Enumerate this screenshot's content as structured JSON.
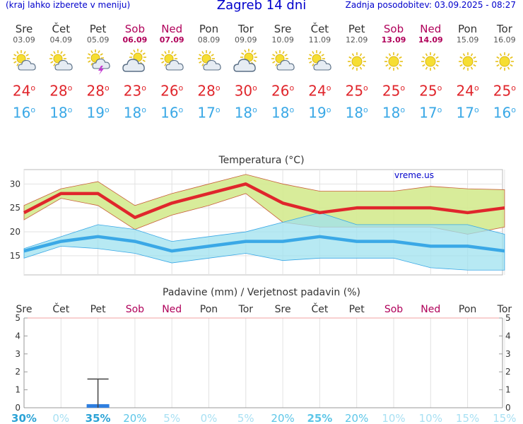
{
  "header": {
    "note": "(kraj lahko izberete v meniju)",
    "title": "Zagreb 14 dni",
    "updated": "Zadnja posodobitev: 03.09.2025 - 08:27"
  },
  "days": [
    {
      "name": "Sre",
      "date": "03.09",
      "weekend": false,
      "icon": "sun-cloud-icon",
      "max": "24",
      "min": "16"
    },
    {
      "name": "Čet",
      "date": "04.09",
      "weekend": false,
      "icon": "sun-cloud-icon",
      "max": "28",
      "min": "18"
    },
    {
      "name": "Pet",
      "date": "05.09",
      "weekend": false,
      "icon": "thunderstorm-icon",
      "max": "28",
      "min": "19"
    },
    {
      "name": "Sob",
      "date": "06.09",
      "weekend": true,
      "icon": "cloud-sun-icon",
      "max": "23",
      "min": "18"
    },
    {
      "name": "Ned",
      "date": "07.09",
      "weekend": true,
      "icon": "sun-cloud-icon",
      "max": "26",
      "min": "16"
    },
    {
      "name": "Pon",
      "date": "08.09",
      "weekend": false,
      "icon": "sun-cloud-icon",
      "max": "28",
      "min": "17"
    },
    {
      "name": "Tor",
      "date": "09.09",
      "weekend": false,
      "icon": "cloud-sun-icon",
      "max": "30",
      "min": "18"
    },
    {
      "name": "Sre",
      "date": "10.09",
      "weekend": false,
      "icon": "sun-cloud-icon",
      "max": "26",
      "min": "18"
    },
    {
      "name": "Čet",
      "date": "11.09",
      "weekend": false,
      "icon": "sun-cloud-icon",
      "max": "24",
      "min": "19"
    },
    {
      "name": "Pet",
      "date": "12.09",
      "weekend": false,
      "icon": "sun-icon",
      "max": "25",
      "min": "18"
    },
    {
      "name": "Sob",
      "date": "13.09",
      "weekend": true,
      "icon": "sun-icon",
      "max": "25",
      "min": "18"
    },
    {
      "name": "Ned",
      "date": "14.09",
      "weekend": true,
      "icon": "sun-icon",
      "max": "25",
      "min": "17"
    },
    {
      "name": "Pon",
      "date": "15.09",
      "weekend": false,
      "icon": "sun-icon",
      "max": "24",
      "min": "17"
    },
    {
      "name": "Tor",
      "date": "16.09",
      "weekend": false,
      "icon": "sun-icon",
      "max": "25",
      "min": "16"
    }
  ],
  "degree_symbol": "o",
  "colors": {
    "max": "#e0262c",
    "min": "#3aa8e6",
    "weekend": "#b0005a",
    "maxband": "#d4ea8f",
    "minband": "#9fe1ef",
    "bar": "#2f7fe0"
  },
  "chart_data": [
    {
      "type": "line",
      "title": "Temperatura (°C)",
      "watermark": "vreme.us",
      "ylim": [
        11,
        33
      ],
      "yticks": [
        15,
        20,
        25,
        30
      ],
      "series": [
        {
          "values": [
            24,
            28,
            28,
            23,
            26,
            28,
            30,
            26,
            24,
            25,
            25,
            25,
            24,
            25
          ],
          "band_low": [
            22.5,
            27,
            25.5,
            20.5,
            23.5,
            25.5,
            28,
            22,
            21,
            21,
            21,
            21,
            19.5,
            21
          ],
          "band_high": [
            25.5,
            29,
            30.5,
            25.5,
            28,
            30,
            32,
            30,
            28.5,
            28.5,
            28.5,
            29.5,
            29,
            28.8
          ]
        },
        {
          "values": [
            16,
            18,
            19,
            18,
            16,
            17,
            18,
            18,
            19,
            18,
            18,
            17,
            17,
            16
          ],
          "band_low": [
            14.5,
            17,
            16.5,
            15.5,
            13.5,
            14.5,
            15.5,
            14,
            14.5,
            14.5,
            14.5,
            12.5,
            12,
            12
          ],
          "band_high": [
            16.5,
            19,
            21.5,
            20.5,
            18,
            19,
            20,
            22,
            24,
            21.5,
            21.5,
            21.5,
            21.5,
            19.5
          ]
        }
      ]
    },
    {
      "type": "bar",
      "title": "Padavine (mm) / Verjetnost padavin (%)",
      "categories": [
        "Sre",
        "Čet",
        "Pet",
        "Sob",
        "Ned",
        "Pon",
        "Tor",
        "Sre",
        "Čet",
        "Pet",
        "Sob",
        "Ned",
        "Pon",
        "Tor"
      ],
      "ylim": [
        0,
        5
      ],
      "yticks": [
        0,
        1,
        2,
        3,
        4,
        5
      ],
      "values": [
        0,
        0,
        0.2,
        0,
        0,
        0,
        0,
        0,
        0,
        0,
        0,
        0,
        0,
        0
      ],
      "error_max": [
        0,
        0,
        1.6,
        0,
        0,
        0,
        0,
        0,
        0,
        0,
        0,
        0,
        0,
        0
      ],
      "probability": [
        "30%",
        "0%",
        "35%",
        "20%",
        "5%",
        "0%",
        "5%",
        "20%",
        "25%",
        "20%",
        "10%",
        "10%",
        "15%",
        "15%"
      ],
      "probability_values": [
        30,
        0,
        35,
        20,
        5,
        0,
        5,
        20,
        25,
        20,
        10,
        10,
        15,
        15
      ]
    }
  ]
}
